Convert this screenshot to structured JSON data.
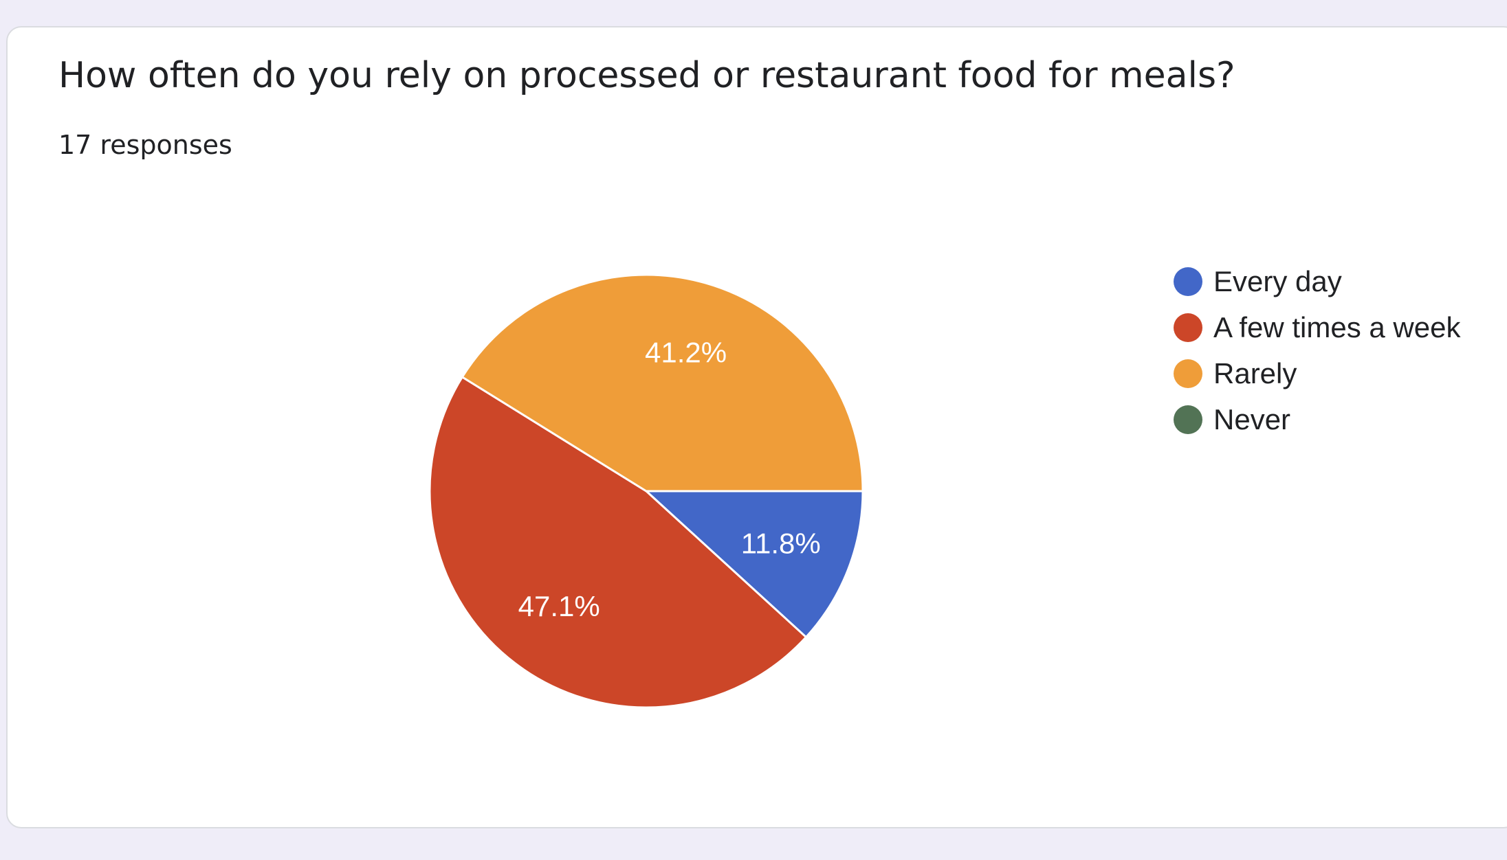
{
  "question": {
    "title": "How often do you rely on processed or restaurant food for meals?",
    "responses_label": "17 responses"
  },
  "chart_data": {
    "type": "pie",
    "categories": [
      "Every day",
      "A few times a week",
      "Rarely",
      "Never"
    ],
    "values": [
      11.8,
      47.1,
      41.2,
      0
    ],
    "labels": [
      "11.8%",
      "47.1%",
      "41.2%",
      ""
    ],
    "colors": [
      "#4267c8",
      "#cc4628",
      "#ef9d39",
      "#527355"
    ],
    "legend_position": "right"
  }
}
